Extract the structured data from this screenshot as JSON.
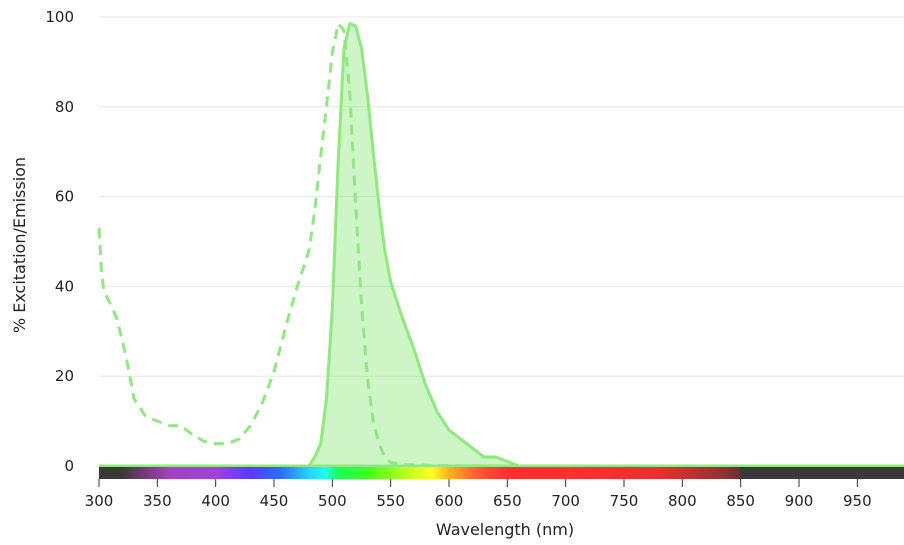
{
  "chart_data": {
    "type": "area",
    "xlabel": "Wavelength (nm)",
    "ylabel": "% Excitation/Emission",
    "xlim": [
      300,
      990
    ],
    "ylim": [
      0,
      100
    ],
    "x_ticks": [
      300,
      350,
      400,
      450,
      500,
      550,
      600,
      650,
      700,
      750,
      800,
      850,
      900,
      950
    ],
    "y_ticks": [
      0,
      20,
      40,
      60,
      80,
      100
    ],
    "grid": "horizontal",
    "legend": "none",
    "series": [
      {
        "style": "dashed-line",
        "color": "#90e880",
        "points": [
          [
            300,
            53
          ],
          [
            302,
            44
          ],
          [
            304,
            39
          ],
          [
            310,
            36
          ],
          [
            315,
            33
          ],
          [
            320,
            28
          ],
          [
            325,
            22
          ],
          [
            330,
            15
          ],
          [
            340,
            11
          ],
          [
            350,
            10
          ],
          [
            360,
            9
          ],
          [
            370,
            9
          ],
          [
            380,
            7
          ],
          [
            390,
            5.5
          ],
          [
            400,
            5
          ],
          [
            410,
            5
          ],
          [
            420,
            6
          ],
          [
            430,
            9
          ],
          [
            440,
            14
          ],
          [
            450,
            21
          ],
          [
            460,
            31
          ],
          [
            470,
            40
          ],
          [
            480,
            48
          ],
          [
            485,
            57
          ],
          [
            490,
            69
          ],
          [
            495,
            80
          ],
          [
            500,
            92
          ],
          [
            505,
            98.5
          ],
          [
            510,
            97
          ],
          [
            515,
            83
          ],
          [
            520,
            58
          ],
          [
            525,
            36
          ],
          [
            530,
            20
          ],
          [
            535,
            10
          ],
          [
            540,
            5
          ],
          [
            545,
            2
          ],
          [
            550,
            0.8
          ],
          [
            560,
            0.3
          ],
          [
            580,
            0.2
          ],
          [
            600,
            0.1
          ],
          [
            650,
            0
          ],
          [
            990,
            0
          ]
        ]
      },
      {
        "style": "filled-area",
        "color": "#90e880",
        "points": [
          [
            300,
            0
          ],
          [
            460,
            0
          ],
          [
            470,
            0
          ],
          [
            480,
            0
          ],
          [
            485,
            2
          ],
          [
            490,
            5
          ],
          [
            495,
            15
          ],
          [
            500,
            35
          ],
          [
            505,
            68
          ],
          [
            510,
            93
          ],
          [
            515,
            98.5
          ],
          [
            520,
            98
          ],
          [
            525,
            93
          ],
          [
            530,
            83
          ],
          [
            535,
            70
          ],
          [
            540,
            58
          ],
          [
            545,
            48
          ],
          [
            550,
            41
          ],
          [
            560,
            33
          ],
          [
            570,
            26
          ],
          [
            580,
            18
          ],
          [
            590,
            12
          ],
          [
            600,
            8
          ],
          [
            610,
            6
          ],
          [
            620,
            4
          ],
          [
            630,
            2
          ],
          [
            640,
            2
          ],
          [
            650,
            1
          ],
          [
            660,
            0
          ],
          [
            700,
            0
          ],
          [
            990,
            0
          ]
        ]
      }
    ],
    "spectrum_bar": {
      "range": [
        300,
        990
      ],
      "stops": [
        [
          300,
          "#3a3a3a"
        ],
        [
          320,
          "#3a3a3a"
        ],
        [
          335,
          "#6a3a6a"
        ],
        [
          360,
          "#a440c0"
        ],
        [
          400,
          "#a040e0"
        ],
        [
          430,
          "#5a3aff"
        ],
        [
          455,
          "#2a6aff"
        ],
        [
          480,
          "#2ad0ff"
        ],
        [
          495,
          "#1affe8"
        ],
        [
          505,
          "#1aff50"
        ],
        [
          530,
          "#40ff20"
        ],
        [
          570,
          "#d0ff20"
        ],
        [
          585,
          "#ffff20"
        ],
        [
          600,
          "#ffb020"
        ],
        [
          625,
          "#ff5a30"
        ],
        [
          650,
          "#ff3030"
        ],
        [
          700,
          "#ff3030"
        ],
        [
          780,
          "#e83030"
        ],
        [
          830,
          "#a03030"
        ],
        [
          848,
          "#703030"
        ],
        [
          850,
          "#3a3a3a"
        ],
        [
          990,
          "#3a3a3a"
        ]
      ]
    },
    "baseline_color": "#90e880"
  }
}
